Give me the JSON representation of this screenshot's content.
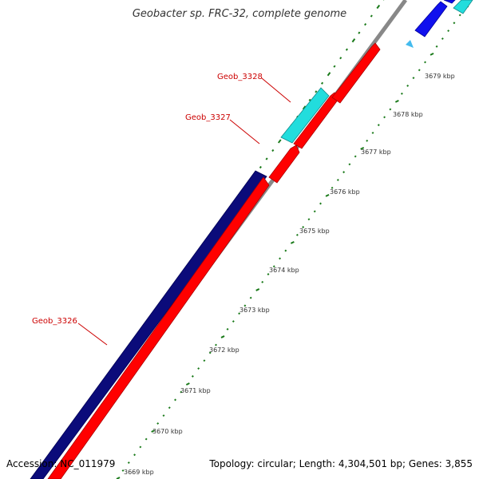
{
  "title": "Geobacter sp. FRC-32, complete genome",
  "footer": {
    "accession": "Accession: NC_011979",
    "summary": "Topology: circular; Length: 4,304,501 bp; Genes: 3,855"
  },
  "genes": [
    {
      "name": "Geob_3326"
    },
    {
      "name": "Geob_3327"
    },
    {
      "name": "Geob_3328"
    }
  ],
  "ticks": [
    "3669 kbp",
    "3670 kbp",
    "3671 kbp",
    "3672 kbp",
    "3673 kbp",
    "3674 kbp",
    "3675 kbp",
    "3676 kbp",
    "3677 kbp",
    "3678 kbp",
    "3679 kbp"
  ],
  "colors": {
    "navy": "#0b0b7a",
    "red": "#ff0000",
    "cyan": "#22dddd",
    "blue": "#1010ee",
    "backbone": "#888888",
    "gc_tick": "#1a7a1a",
    "label": "#cc0000"
  }
}
